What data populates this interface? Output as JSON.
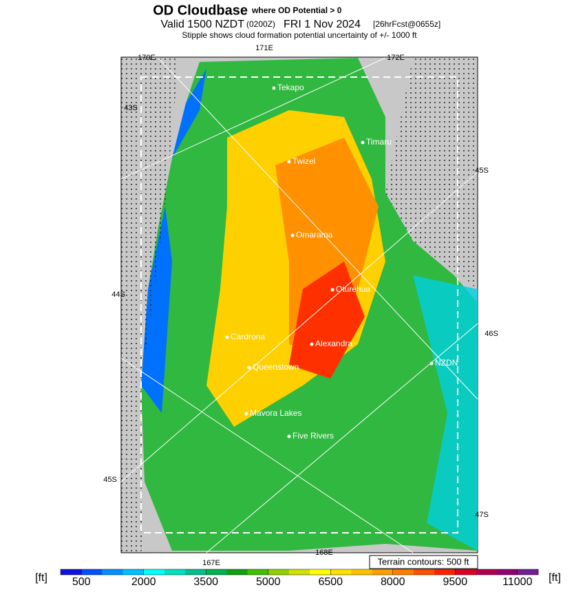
{
  "header": {
    "title": "OD Cloudbase",
    "title_note": "where OD Potential > 0",
    "valid": "Valid 1500 NZDT",
    "utc": "(0200Z)",
    "date": "FRI 1 Nov 2024",
    "forecast": "[26hrFcst@0655z]",
    "subtitle": "Stipple shows cloud formation potential uncertainty of +/- 1000 ft"
  },
  "map": {
    "longitudes": [
      "171E",
      "170E",
      "172E",
      "167E",
      "168E"
    ],
    "latitudes": [
      "43S",
      "45S",
      "44S",
      "46S",
      "45S",
      "47S"
    ],
    "places": [
      "Tekapo",
      "Timaru",
      "Twizel",
      "Omarama",
      "Oturehua",
      "Cardrona",
      "Alexandra",
      "Queenstown",
      "NZDN",
      "Mavora Lakes",
      "Five Rivers"
    ],
    "terrain_note": "Terrain contours: 500 ft"
  },
  "colorbar": {
    "unit_left": "[ft]",
    "unit_right": "[ft]",
    "lim": [
      0,
      11500
    ],
    "ticks": [
      500,
      2000,
      3500,
      5000,
      6500,
      8000,
      9500,
      11000
    ],
    "colors": [
      "#1010e0",
      "#0050ff",
      "#0090ff",
      "#00c0ff",
      "#00ffff",
      "#00e0c0",
      "#00c090",
      "#00b050",
      "#10a010",
      "#40c000",
      "#90d000",
      "#d0e000",
      "#ffff00",
      "#ffe000",
      "#ffc000",
      "#ffa000",
      "#ff8000",
      "#ff5000",
      "#ff2000",
      "#e00020",
      "#b00050",
      "#900070",
      "#702090"
    ]
  }
}
